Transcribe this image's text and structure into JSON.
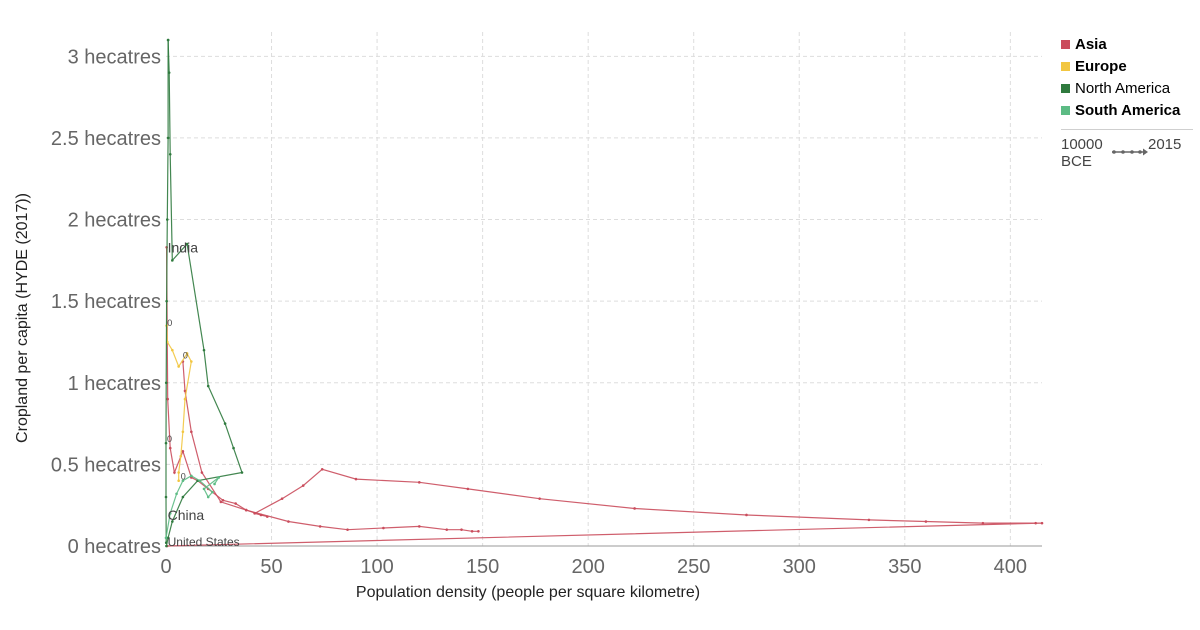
{
  "chart_data": {
    "type": "line",
    "subtype": "connected-scatter",
    "xlabel": "Population density (people per square kilometre)",
    "ylabel": "Cropland per capita (HYDE (2017))",
    "xlim": [
      0,
      415
    ],
    "ylim": [
      0,
      3.1
    ],
    "x_ticks": [
      0,
      50,
      100,
      150,
      200,
      250,
      300,
      350,
      400
    ],
    "y_ticks": [
      {
        "value": 0,
        "label": "0 hecatres"
      },
      {
        "value": 0.5,
        "label": "0.5 hecatres"
      },
      {
        "value": 1,
        "label": "1 hecatres"
      },
      {
        "value": 1.5,
        "label": "1.5 hecatres"
      },
      {
        "value": 2,
        "label": "2 hecatres"
      },
      {
        "value": 2.5,
        "label": "2.5 hecatres"
      },
      {
        "value": 3,
        "label": "3 hecatres"
      }
    ],
    "grid": true,
    "legend_position": "right",
    "series": [
      {
        "name": "Asia",
        "color": "#ca4c5c",
        "points": [
          [
            0.3,
            1.83
          ],
          [
            0.8,
            0.9
          ],
          [
            2,
            0.6
          ],
          [
            4,
            0.45
          ],
          [
            8,
            0.58
          ],
          [
            12,
            0.42
          ],
          [
            15,
            0.4
          ],
          [
            20,
            0.35
          ],
          [
            27,
            0.28
          ],
          [
            33,
            0.26
          ],
          [
            38,
            0.22
          ],
          [
            45,
            0.19
          ],
          [
            48,
            0.18
          ],
          [
            42,
            0.2
          ],
          [
            55,
            0.29
          ],
          [
            65,
            0.37
          ],
          [
            74,
            0.47
          ],
          [
            90,
            0.41
          ],
          [
            120,
            0.39
          ],
          [
            143,
            0.35
          ],
          [
            177,
            0.29
          ],
          [
            222,
            0.23
          ],
          [
            275,
            0.19
          ],
          [
            333,
            0.16
          ],
          [
            360,
            0.15
          ],
          [
            387,
            0.14
          ],
          [
            412,
            0.14
          ],
          [
            415,
            0.14
          ],
          [
            0.5,
            0
          ]
        ]
      },
      {
        "name": "Asia",
        "color": "#ca4c5c",
        "points": [
          [
            8,
            1.13
          ],
          [
            9,
            0.95
          ],
          [
            12,
            0.7
          ],
          [
            17,
            0.45
          ],
          [
            26,
            0.27
          ],
          [
            38,
            0.22
          ],
          [
            58,
            0.15
          ],
          [
            73,
            0.12
          ],
          [
            86,
            0.1
          ],
          [
            103,
            0.11
          ],
          [
            120,
            0.12
          ],
          [
            133,
            0.1
          ],
          [
            140,
            0.1
          ],
          [
            145,
            0.09
          ],
          [
            148,
            0.09
          ]
        ]
      },
      {
        "name": "Europe",
        "color": "#f2c641",
        "points": [
          [
            0.3,
            1.35
          ],
          [
            0.6,
            1.25
          ],
          [
            3,
            1.2
          ],
          [
            6,
            1.1
          ],
          [
            10,
            1.18
          ],
          [
            12,
            1.13
          ],
          [
            9,
            0.9
          ],
          [
            8,
            0.7
          ],
          [
            7,
            0.55
          ],
          [
            6,
            0.45
          ],
          [
            6,
            0.4
          ]
        ]
      },
      {
        "name": "North America",
        "color": "#2f7a3e",
        "points": [
          [
            1,
            3.1
          ],
          [
            1.5,
            2.9
          ],
          [
            2,
            2.4
          ],
          [
            3,
            1.75
          ],
          [
            10,
            1.85
          ],
          [
            18,
            1.2
          ],
          [
            20,
            0.98
          ],
          [
            28,
            0.75
          ],
          [
            32,
            0.6
          ],
          [
            36,
            0.45
          ],
          [
            15,
            0.4
          ],
          [
            8,
            0.3
          ],
          [
            3,
            0.15
          ],
          [
            1,
            0.05
          ],
          [
            0.2,
            0
          ]
        ]
      },
      {
        "name": "North America",
        "color": "#2f7a3e",
        "points": [
          [
            1,
            3.1
          ],
          [
            1,
            2.5
          ],
          [
            0.6,
            2
          ],
          [
            0.3,
            1.5
          ],
          [
            0.1,
            1
          ],
          [
            0,
            0.63
          ],
          [
            0,
            0.3
          ],
          [
            0.1,
            0.02
          ]
        ]
      },
      {
        "name": "South America",
        "color": "#5cbb84",
        "points": [
          [
            0,
            0.05
          ],
          [
            2,
            0.2
          ],
          [
            5,
            0.32
          ],
          [
            8,
            0.4
          ],
          [
            12,
            0.43
          ],
          [
            16,
            0.4
          ],
          [
            22,
            0.33
          ],
          [
            20,
            0.3
          ],
          [
            18,
            0.35
          ],
          [
            25,
            0.42
          ],
          [
            23,
            0.38
          ]
        ]
      }
    ],
    "annotations": [
      {
        "text": "India",
        "x": 0.3,
        "y": 1.83
      },
      {
        "text": "China",
        "x": 0.3,
        "y": 0.19
      },
      {
        "text": "United States",
        "x": 0.3,
        "y": 0
      },
      {
        "text": "0",
        "x": 0.6,
        "y": 1.33
      },
      {
        "text": "0",
        "x": 8,
        "y": 1.13
      },
      {
        "text": "0",
        "x": 0.5,
        "y": 0.62
      },
      {
        "text": "0",
        "x": 7,
        "y": 0.39
      }
    ]
  },
  "legend": {
    "items": [
      {
        "label": "Asia",
        "color": "#ca4c5c",
        "bold": true
      },
      {
        "label": "Europe",
        "color": "#f2c641",
        "bold": true
      },
      {
        "label": "North America",
        "color": "#2f7a3e",
        "bold": false
      },
      {
        "label": "South America",
        "color": "#5cbb84",
        "bold": true
      }
    ],
    "timeline_start": "10000 BCE",
    "timeline_end": "2015"
  }
}
